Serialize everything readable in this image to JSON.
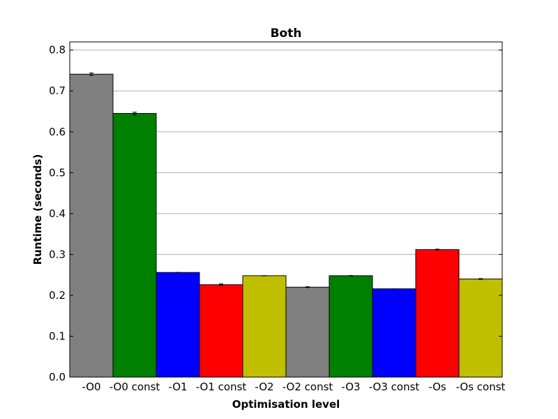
{
  "chart_data": {
    "type": "bar",
    "title": "Both",
    "xlabel": "Optimisation level",
    "ylabel": "Runtime (seconds)",
    "ylim": [
      0,
      0.82
    ],
    "yticks": [
      0.0,
      0.1,
      0.2,
      0.3,
      0.4,
      0.5,
      0.6,
      0.7,
      0.8
    ],
    "ytick_labels": [
      "0.0",
      "0.1",
      "0.2",
      "0.3",
      "0.4",
      "0.5",
      "0.6",
      "0.7",
      "0.8"
    ],
    "grid": "horizontal",
    "categories": [
      "-O0",
      "-O0 const",
      "-O1",
      "-O1 const",
      "-O2",
      "-O2 const",
      "-O3",
      "-O3 const",
      "-Os",
      "-Os const"
    ],
    "values": [
      0.741,
      0.645,
      0.256,
      0.226,
      0.248,
      0.22,
      0.248,
      0.216,
      0.312,
      0.24
    ],
    "errors": [
      0.003,
      0.003,
      0.0,
      0.002,
      0.0,
      0.001,
      0.0005,
      0.0,
      0.001,
      0.001
    ],
    "colors": [
      "#808080",
      "#008000",
      "#0000ff",
      "#ff0000",
      "#bfbf00",
      "#808080",
      "#008000",
      "#0000ff",
      "#ff0000",
      "#bfbf00"
    ]
  }
}
